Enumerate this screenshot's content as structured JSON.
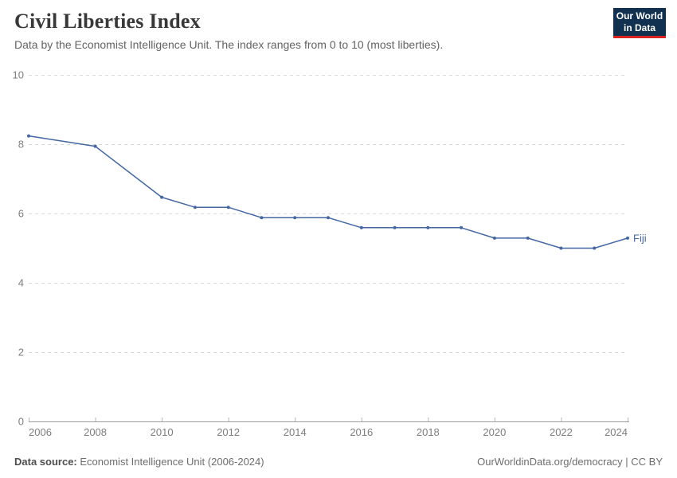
{
  "header": {
    "title": "Civil Liberties Index",
    "subtitle": "Data by the Economist Intelligence Unit. The index ranges from 0 to 10 (most liberties).",
    "logo": {
      "line1": "Our World",
      "line2": "in Data"
    }
  },
  "chart_data": {
    "type": "line",
    "title": "Civil Liberties Index",
    "subtitle": "Data by the Economist Intelligence Unit. The index ranges from 0 to 10 (most liberties).",
    "x": [
      2006,
      2008,
      2010,
      2011,
      2012,
      2013,
      2014,
      2015,
      2016,
      2017,
      2018,
      2019,
      2020,
      2021,
      2022,
      2023,
      2024
    ],
    "series": [
      {
        "name": "Fiji",
        "color": "#4467a4",
        "values": [
          8.24,
          7.94,
          6.47,
          6.18,
          6.18,
          5.88,
          5.88,
          5.88,
          5.59,
          5.59,
          5.59,
          5.59,
          5.29,
          5.29,
          5.0,
          5.0,
          5.29
        ]
      }
    ],
    "xlabel": "",
    "ylabel": "",
    "xlim": [
      2006,
      2024
    ],
    "ylim": [
      0,
      10
    ],
    "xticks": [
      2006,
      2008,
      2010,
      2012,
      2014,
      2016,
      2018,
      2020,
      2022,
      2024
    ],
    "yticks": [
      0,
      2,
      4,
      6,
      8,
      10
    ],
    "grid": "horizontal-dashed",
    "legend_position": "end-of-line-label"
  },
  "footer": {
    "source_label": "Data source:",
    "source_text": " Economist Intelligence Unit (2006-2024)",
    "link_text": "OurWorldinData.org/democracy | CC BY"
  },
  "colors": {
    "accent_line": "#4467a4",
    "logo_bg": "#12304f",
    "logo_underline": "#dc241f",
    "gridline": "#dadada",
    "axis_line": "#9e9e9e",
    "tick_mark": "#b5b5b5",
    "tick_label": "#7d7d7d",
    "title_text": "#383838",
    "subtitle_text": "#636363"
  }
}
